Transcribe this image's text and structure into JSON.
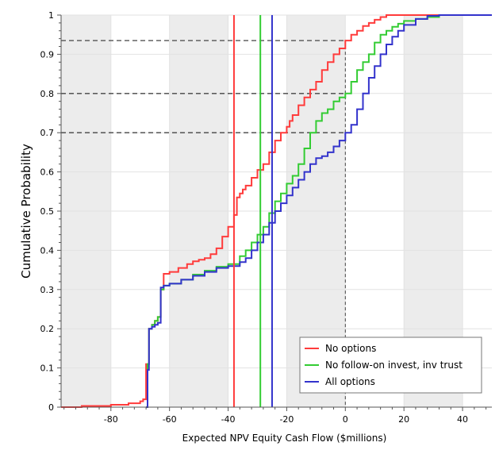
{
  "chart_data": {
    "type": "line",
    "title": "",
    "xlabel": "Expected NPV Equity Cash Flow ($millions)",
    "ylabel": "Cumulative Probability",
    "xlim": [
      -97,
      50
    ],
    "ylim": [
      0,
      1
    ],
    "xticks": [
      -80,
      -60,
      -40,
      -20,
      0,
      20,
      40
    ],
    "yticks": [
      0,
      0.1,
      0.2,
      0.3,
      0.4,
      0.5,
      0.6,
      0.7,
      0.8,
      0.9,
      1
    ],
    "ytick_labels": [
      "0",
      "0.1",
      "0.2",
      "0.3",
      "0.4",
      "0.5",
      "0.6",
      "0.7",
      "0.8",
      "0.9",
      "1"
    ],
    "grid": true,
    "shaded_bands": [
      [
        -100,
        -80
      ],
      [
        -60,
        -40
      ],
      [
        -20,
        0
      ],
      [
        20,
        40
      ]
    ],
    "legend_position": "bottom-right",
    "series": [
      {
        "name": "No options",
        "color": "#ff3b3b",
        "x": [
          -97,
          -90,
          -80,
          -74,
          -70,
          -69,
          -68,
          -67,
          -66,
          -65,
          -64,
          -63,
          -62,
          -60,
          -57,
          -54,
          -52,
          -50,
          -48,
          -46,
          -44,
          -42,
          -40,
          -38,
          -37,
          -36,
          -35,
          -34,
          -32,
          -30,
          -28,
          -26,
          -24,
          -22,
          -20,
          -19,
          -18,
          -16,
          -14,
          -12,
          -10,
          -8,
          -6,
          -4,
          -2,
          0,
          2,
          4,
          6,
          8,
          10,
          12,
          14,
          16,
          20,
          25,
          30,
          35,
          40,
          50
        ],
        "y": [
          0,
          0.003,
          0.006,
          0.01,
          0.015,
          0.02,
          0.11,
          0.2,
          0.21,
          0.22,
          0.23,
          0.3,
          0.34,
          0.345,
          0.355,
          0.365,
          0.372,
          0.376,
          0.38,
          0.39,
          0.405,
          0.435,
          0.46,
          0.49,
          0.535,
          0.545,
          0.555,
          0.565,
          0.585,
          0.605,
          0.62,
          0.65,
          0.68,
          0.7,
          0.715,
          0.73,
          0.745,
          0.77,
          0.79,
          0.81,
          0.83,
          0.86,
          0.88,
          0.9,
          0.915,
          0.935,
          0.95,
          0.96,
          0.972,
          0.98,
          0.988,
          0.995,
          1,
          1,
          1,
          1,
          1,
          1,
          1,
          1
        ]
      },
      {
        "name": "No follow-on invest, inv trust",
        "color": "#33cc33",
        "x": [
          -68,
          -67.5,
          -67,
          -66,
          -65,
          -64,
          -63,
          -62,
          -60,
          -56,
          -52,
          -48,
          -44,
          -40,
          -36,
          -34,
          -32,
          -30,
          -28,
          -26,
          -24,
          -22,
          -20,
          -18,
          -16,
          -14,
          -12,
          -10,
          -8,
          -6,
          -4,
          -2,
          0,
          2,
          4,
          6,
          8,
          10,
          12,
          14,
          16,
          18,
          20,
          24,
          28,
          32,
          36,
          40,
          50
        ],
        "y": [
          0,
          0.11,
          0.2,
          0.21,
          0.22,
          0.23,
          0.3,
          0.31,
          0.315,
          0.325,
          0.338,
          0.348,
          0.358,
          0.365,
          0.385,
          0.4,
          0.42,
          0.44,
          0.46,
          0.495,
          0.525,
          0.545,
          0.57,
          0.59,
          0.62,
          0.66,
          0.7,
          0.73,
          0.75,
          0.76,
          0.78,
          0.79,
          0.8,
          0.83,
          0.86,
          0.88,
          0.9,
          0.93,
          0.95,
          0.96,
          0.97,
          0.978,
          0.985,
          0.99,
          0.995,
          1,
          1,
          1,
          1
        ]
      },
      {
        "name": "All options",
        "color": "#3333cc",
        "x": [
          -68,
          -67.5,
          -67,
          -66,
          -65,
          -64,
          -63,
          -62,
          -60,
          -56,
          -52,
          -48,
          -44,
          -40,
          -36,
          -34,
          -32,
          -30,
          -28,
          -26,
          -24,
          -22,
          -20,
          -18,
          -16,
          -14,
          -12,
          -10,
          -8,
          -6,
          -4,
          -2,
          0,
          2,
          4,
          6,
          8,
          10,
          12,
          14,
          16,
          18,
          20,
          24,
          28,
          32,
          36,
          40,
          50
        ],
        "y": [
          0,
          0.095,
          0.2,
          0.205,
          0.21,
          0.215,
          0.305,
          0.31,
          0.315,
          0.325,
          0.335,
          0.345,
          0.355,
          0.36,
          0.37,
          0.38,
          0.4,
          0.42,
          0.44,
          0.47,
          0.5,
          0.52,
          0.54,
          0.56,
          0.58,
          0.6,
          0.62,
          0.635,
          0.64,
          0.65,
          0.665,
          0.68,
          0.7,
          0.72,
          0.76,
          0.8,
          0.84,
          0.87,
          0.9,
          0.925,
          0.945,
          0.96,
          0.975,
          0.99,
          0.998,
          1,
          1,
          1,
          1
        ]
      }
    ],
    "reference_lines": {
      "vertical": [
        {
          "x": -38,
          "color": "#ff3b3b"
        },
        {
          "x": -29,
          "color": "#33cc33"
        },
        {
          "x": -25,
          "color": "#3333cc"
        }
      ],
      "zero_line_x": 0,
      "horizontal": [
        0.935,
        0.8,
        0.7
      ]
    }
  }
}
